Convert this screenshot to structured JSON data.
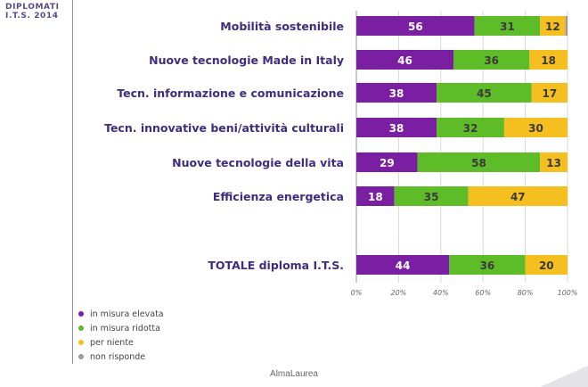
{
  "side_title": {
    "line1": "DIPLOMATI",
    "line2": "I.T.S. 2014"
  },
  "footer": "AlmaLaurea",
  "colors": {
    "elevata": "#7a1fa2",
    "ridotta": "#5ebc28",
    "per_niente": "#f5bf1f",
    "non_risponde": "#9a9a9a"
  },
  "legend": [
    {
      "label": "in misura elevata",
      "color": "#7a1fa2"
    },
    {
      "label": "in misura ridotta",
      "color": "#5ebc28"
    },
    {
      "label": "per niente",
      "color": "#f5bf1f"
    },
    {
      "label": "non risponde",
      "color": "#9a9a9a"
    }
  ],
  "chart_data": {
    "type": "bar",
    "orientation": "horizontal",
    "stacked": true,
    "categories": [
      "Mobilità sostenibile",
      "Nuove tecnologie Made in Italy",
      "Tecn. informazione e comunicazione",
      "Tecn. innovative beni/attività culturali",
      "Nuove tecnologie della vita",
      "Efficienza energetica",
      "TOTALE diploma I.T.S."
    ],
    "series": [
      {
        "name": "in misura elevata",
        "color": "#7a1fa2",
        "values": [
          56,
          46,
          38,
          38,
          29,
          18,
          44
        ]
      },
      {
        "name": "in misura ridotta",
        "color": "#5ebc28",
        "values": [
          31,
          36,
          45,
          32,
          58,
          35,
          36
        ]
      },
      {
        "name": "per niente",
        "color": "#f5bf1f",
        "values": [
          12,
          18,
          17,
          30,
          13,
          47,
          20
        ]
      },
      {
        "name": "non risponde",
        "color": "#9a9a9a",
        "values": [
          1,
          0,
          0,
          0,
          0,
          0,
          0
        ]
      }
    ],
    "xlim": [
      0,
      100
    ],
    "xticks": [
      "0%",
      "20%",
      "40%",
      "60%",
      "80%",
      "100%"
    ],
    "legend_position": "bottom-left"
  }
}
